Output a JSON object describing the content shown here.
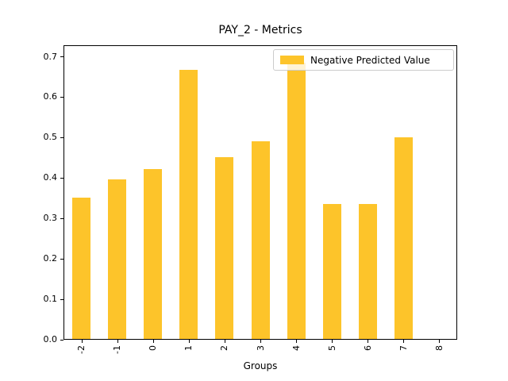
{
  "window": {
    "background_color": "#ffffff"
  },
  "chart_data": {
    "type": "bar",
    "title": "PAY_2 - Metrics",
    "xlabel": "Groups",
    "ylabel": "",
    "categories": [
      "-2",
      "-1",
      "0",
      "1",
      "2",
      "3",
      "4",
      "5",
      "6",
      "7",
      "8"
    ],
    "series": [
      {
        "name": "Negative Predicted Value",
        "values": [
          0.35,
          0.395,
          0.42,
          0.667,
          0.45,
          0.49,
          0.684,
          0.333,
          0.333,
          0.5,
          0
        ]
      }
    ],
    "bar_color": "#fdc42a",
    "ylim": [
      0,
      0.7275
    ],
    "yticks": [
      0.0,
      0.1,
      0.2,
      0.3,
      0.4,
      0.5,
      0.6,
      0.7
    ],
    "x_tick_rotation": 90,
    "grid": false,
    "legend": {
      "position": "upper right",
      "entries": [
        "Negative Predicted Value"
      ]
    }
  }
}
